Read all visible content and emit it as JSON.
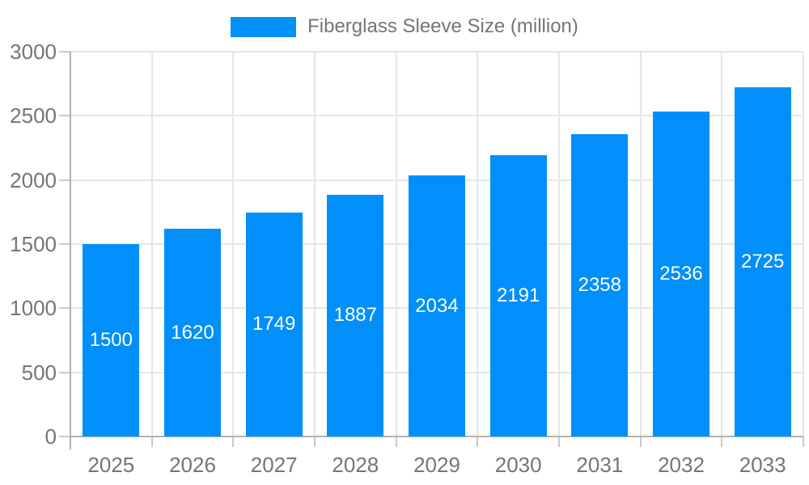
{
  "legend": {
    "label": "Fiberglass Sleeve Size (million)"
  },
  "chart_data": {
    "type": "bar",
    "title": "",
    "xlabel": "",
    "ylabel": "",
    "categories": [
      "2025",
      "2026",
      "2027",
      "2028",
      "2029",
      "2030",
      "2031",
      "2032",
      "2033"
    ],
    "series": [
      {
        "name": "Fiberglass Sleeve Size (million)",
        "values": [
          1500,
          1620,
          1749,
          1887,
          2034,
          2191,
          2358,
          2536,
          2725
        ]
      }
    ],
    "ylim": [
      0,
      3000
    ],
    "yticks": [
      0,
      500,
      1000,
      1500,
      2000,
      2500,
      3000
    ],
    "grid": true,
    "legend_position": "top-center",
    "bar_label_style": "inside-center-white",
    "colors": {
      "bar": "#008FFB",
      "bar_label": "#FFFFFF",
      "axis_text": "#757575",
      "legend_text": "#757575",
      "grid_line": "#E6E6E6",
      "axis_line": "#B3B3B3",
      "tick_line": "#C9C9C9",
      "background": "#FFFFFF"
    }
  }
}
